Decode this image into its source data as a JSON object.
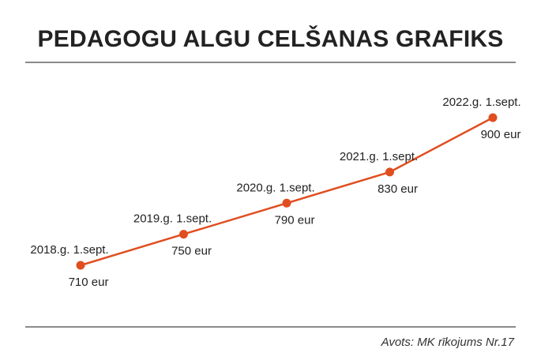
{
  "chart_data": {
    "type": "line",
    "title": "PEDAGOGU ALGU CELŠANAS GRAFIKS",
    "categories": [
      "2018.g. 1.sept.",
      "2019.g. 1.sept.",
      "2020.g. 1.sept.",
      "2021.g. 1.sept.",
      "2022.g. 1.sept."
    ],
    "values": [
      710,
      750,
      790,
      830,
      900
    ],
    "value_labels": [
      "710 eur",
      "750 eur",
      "790 eur",
      "830 eur",
      "900 eur"
    ],
    "series": [
      {
        "values": [
          710,
          750,
          790,
          830,
          900
        ],
        "color": "#e04e20"
      }
    ],
    "grid": false,
    "legend": "none",
    "source": "Avots: MK rīkojums Nr.17"
  }
}
